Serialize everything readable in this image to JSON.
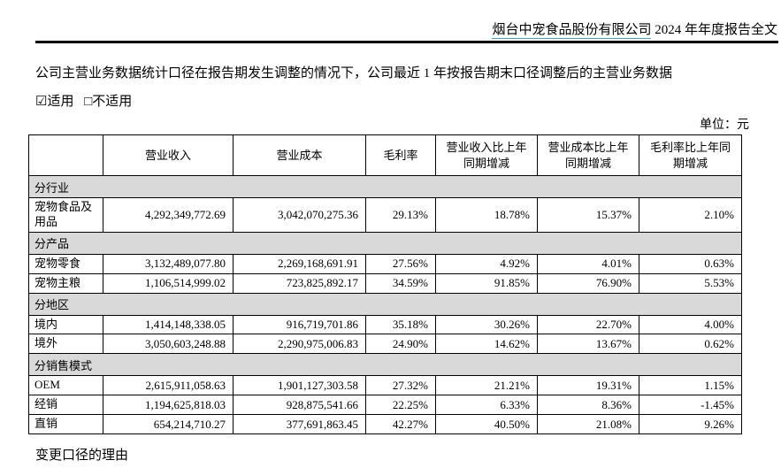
{
  "page": {
    "header": {
      "company_name": "烟台中宠食品股份有限公司",
      "report_title": " 2024 年年度报告全文"
    },
    "intro_text": "公司主营业务数据统计口径在报告期发生调整的情况下，公司最近 1 年按报告期末口径调整后的主营业务数据",
    "applicable_label": "☑适用",
    "not_applicable_label": "□不适用",
    "unit_label": "单位：元",
    "footer_label": "变更口径的理由"
  },
  "colors": {
    "link_underline": "#3aa7c8",
    "section_row_bg": "#d9d9d9",
    "table_border": "#000000"
  },
  "table": {
    "columns": [
      "",
      "营业收入",
      "营业成本",
      "毛利率",
      "营业收入比上年同期增减",
      "营业成本比上年同期增减",
      "毛利率比上年同期增减"
    ],
    "rows": [
      {
        "type": "section",
        "label": "分行业"
      },
      {
        "type": "data",
        "label": "宠物食品及用品",
        "values": [
          "4,292,349,772.69",
          "3,042,070,275.36",
          "29.13%",
          "18.78%",
          "15.37%",
          "2.10%"
        ]
      },
      {
        "type": "section",
        "label": "分产品"
      },
      {
        "type": "data",
        "label": "宠物零食",
        "values": [
          "3,132,489,077.80",
          "2,269,168,691.91",
          "27.56%",
          "4.92%",
          "4.01%",
          "0.63%"
        ]
      },
      {
        "type": "data",
        "label": "宠物主粮",
        "values": [
          "1,106,514,999.02",
          "723,825,892.17",
          "34.59%",
          "91.85%",
          "76.90%",
          "5.53%"
        ]
      },
      {
        "type": "section",
        "label": "分地区"
      },
      {
        "type": "data",
        "label": "境内",
        "values": [
          "1,414,148,338.05",
          "916,719,701.86",
          "35.18%",
          "30.26%",
          "22.70%",
          "4.00%"
        ]
      },
      {
        "type": "data",
        "label": "境外",
        "values": [
          "3,050,603,248.88",
          "2,290,975,006.83",
          "24.90%",
          "14.62%",
          "13.67%",
          "0.62%"
        ]
      },
      {
        "type": "section",
        "label": "分销售模式"
      },
      {
        "type": "data",
        "label": "OEM",
        "values": [
          "2,615,911,058.63",
          "1,901,127,303.58",
          "27.32%",
          "21.21%",
          "19.31%",
          "1.15%"
        ]
      },
      {
        "type": "data",
        "label": "经销",
        "values": [
          "1,194,625,818.03",
          "928,875,541.66",
          "22.25%",
          "6.33%",
          "8.36%",
          "-1.45%"
        ]
      },
      {
        "type": "data",
        "label": "直销",
        "values": [
          "654,214,710.27",
          "377,691,863.45",
          "42.27%",
          "40.50%",
          "21.08%",
          "9.26%"
        ]
      }
    ]
  }
}
